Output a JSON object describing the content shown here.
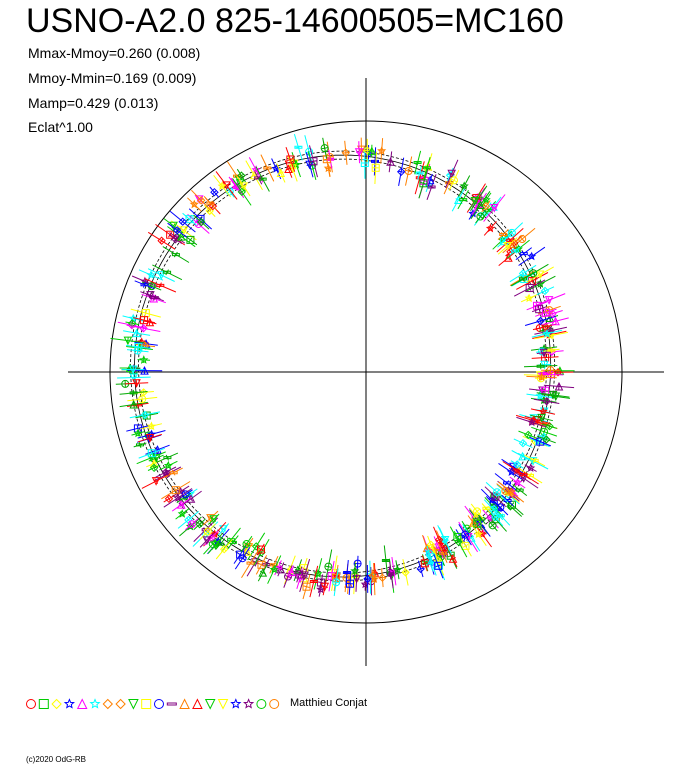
{
  "title": "USNO-A2.0 825-14600505=MC160",
  "stats": [
    "Mmax-Mmoy=0.260 (0.008)",
    "Mmoy-Mmin=0.169 (0.009)",
    "Mamp=0.429 (0.013)",
    "Eclat^1.00"
  ],
  "legend_author": "Matthieu Conjat",
  "copyright": "(c)2020 OdG-RB",
  "chart_data": {
    "type": "scatter",
    "description_type": "polar magnitude plot",
    "mmax_minus_mmoy": 0.26,
    "mmax_minus_mmoy_err": 0.008,
    "mmoy_minus_mmin": 0.169,
    "mmoy_minus_mmin_err": 0.009,
    "mamp": 0.429,
    "mamp_err": 0.013,
    "eclat_exponent": 1.0,
    "series_colors": [
      "#ff0000",
      "#00cc00",
      "#ffff00",
      "#0000ff",
      "#ff00ff",
      "#00ffff",
      "#ff8000",
      "#800080",
      "#00aa00"
    ],
    "legend_symbols": [
      "circle",
      "square",
      "diamond",
      "star",
      "triangle",
      "star",
      "pentagon",
      "diamond",
      "triangle-down",
      "square",
      "circle",
      "cross",
      "triangle-left",
      "triangle-right",
      "hourglass",
      "hourglass",
      "star",
      "star",
      "circle",
      "hexagon"
    ],
    "legend_colors": [
      "#ff0000",
      "#00cc00",
      "#ffff00",
      "#0000ff",
      "#ff00ff",
      "#00ffff",
      "#ff8000",
      "#ff8000",
      "#00cc00",
      "#ffff00",
      "#0000ff",
      "#800080",
      "#ff8000",
      "#ff0000",
      "#00cc00",
      "#ffff00",
      "#0000ff",
      "#800080",
      "#00cc00",
      "#ff8000"
    ]
  }
}
